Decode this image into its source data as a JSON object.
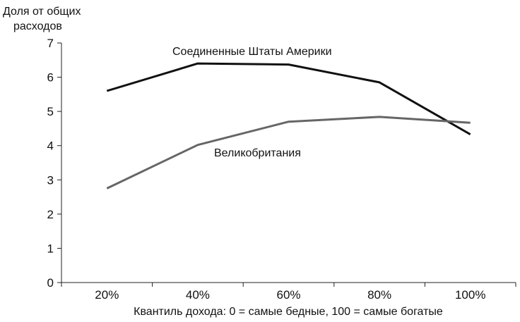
{
  "chart_data": {
    "type": "line",
    "title": "",
    "ylabel": "Доля от общих расходов",
    "ylabel_lines": [
      "Доля от общих",
      "расходов"
    ],
    "xlabel": "Квантиль дохода: 0 = самые бедные, 100 = самые богатые",
    "categories": [
      "20%",
      "40%",
      "60%",
      "80%",
      "100%"
    ],
    "ylim": [
      0,
      7
    ],
    "yticks": [
      0,
      1,
      2,
      3,
      4,
      5,
      6,
      7
    ],
    "grid": false,
    "legend": "none (series labeled inline)",
    "series": [
      {
        "name": "Соединенные Штаты Америки",
        "values": [
          5.6,
          6.4,
          6.37,
          5.85,
          4.33
        ],
        "color": "#111111"
      },
      {
        "name": "Великобритания",
        "values": [
          2.75,
          4.02,
          4.7,
          4.84,
          4.67
        ],
        "color": "#666666"
      }
    ]
  }
}
